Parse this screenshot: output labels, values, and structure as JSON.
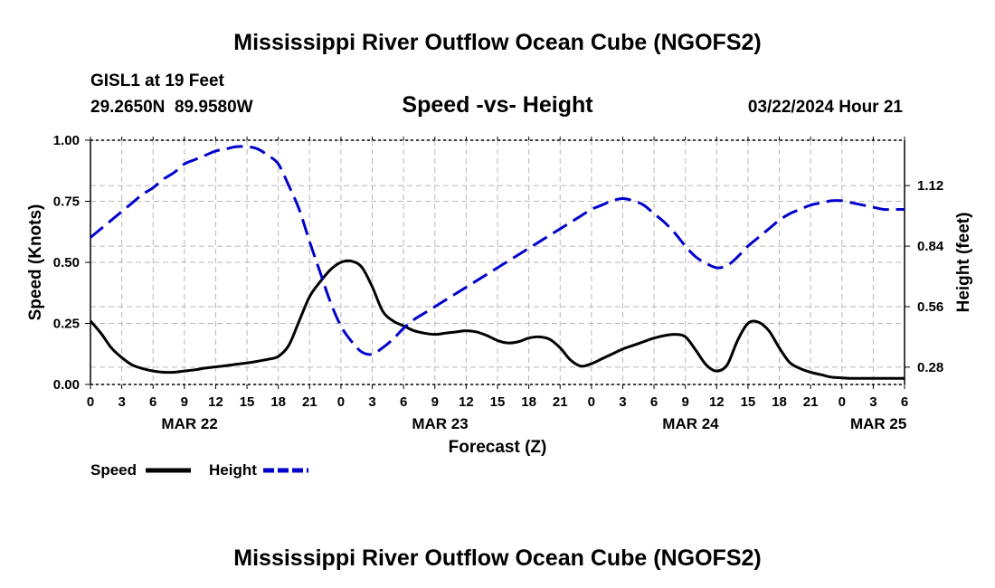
{
  "title": "Mississippi River Outflow Ocean Cube (NGOFS2)",
  "footer_title": "Mississippi River Outflow Ocean Cube (NGOFS2)",
  "station": {
    "name": "GISL1 at 19 Feet",
    "coords": "29.2650N  89.9580W"
  },
  "chart_subtitle": "Speed -vs- Height",
  "forecast_time": "03/22/2024 Hour 21",
  "chart_data": {
    "type": "line",
    "title": "Speed -vs- Height",
    "xlabel": "Forecast (Z)",
    "ylabel": "Speed (Knots)",
    "y2label": "Height (feet)",
    "xlim": [
      0,
      78
    ],
    "ylim": [
      0,
      1.0
    ],
    "y2lim": [
      0.2,
      1.33
    ],
    "grid": true,
    "x_tick_step_hours": 3,
    "x_tick_labels": [
      "0",
      "3",
      "6",
      "9",
      "12",
      "15",
      "18",
      "21",
      "0",
      "3",
      "6",
      "9",
      "12",
      "15",
      "18",
      "21",
      "0",
      "3",
      "6",
      "9",
      "12",
      "15",
      "18",
      "21",
      "0",
      "3",
      "6"
    ],
    "y_ticks": [
      0.0,
      0.25,
      0.5,
      0.75,
      1.0
    ],
    "y_tick_labels": [
      "0.00",
      "0.25",
      "0.50",
      "0.75",
      "1.00"
    ],
    "y2_ticks": [
      0.28,
      0.56,
      0.84,
      1.12
    ],
    "y2_tick_labels": [
      "0.28",
      "0.56",
      "0.84",
      "1.12"
    ],
    "date_labels": [
      {
        "label": "MAR 22",
        "hour": 9.5
      },
      {
        "label": "MAR 23",
        "hour": 33.5
      },
      {
        "label": "MAR 24",
        "hour": 57.5
      },
      {
        "label": "MAR 25",
        "hour": 75.5
      }
    ],
    "series": [
      {
        "name": "Speed",
        "axis": "left",
        "color": "#000000",
        "style": "solid",
        "x": [
          0,
          1,
          2,
          3,
          4,
          5,
          6,
          7,
          8,
          9,
          10,
          11,
          12,
          13,
          14,
          15,
          16,
          17,
          18,
          19,
          20,
          21,
          22,
          23,
          24,
          25,
          26,
          27,
          28,
          29,
          30,
          31,
          32,
          33,
          34,
          35,
          36,
          37,
          38,
          39,
          40,
          41,
          42,
          43,
          44,
          45,
          46,
          47,
          48,
          49,
          50,
          51,
          52,
          53,
          54,
          55,
          56,
          57,
          58,
          59,
          60,
          61,
          62,
          63,
          64,
          65,
          66,
          67,
          68,
          69,
          70,
          71,
          72,
          73,
          74,
          75,
          76,
          77,
          78
        ],
        "values": [
          0.26,
          0.21,
          0.15,
          0.11,
          0.08,
          0.065,
          0.055,
          0.05,
          0.05,
          0.055,
          0.06,
          0.067,
          0.072,
          0.077,
          0.083,
          0.088,
          0.095,
          0.103,
          0.115,
          0.16,
          0.26,
          0.36,
          0.42,
          0.47,
          0.5,
          0.505,
          0.48,
          0.4,
          0.3,
          0.26,
          0.24,
          0.22,
          0.21,
          0.205,
          0.21,
          0.215,
          0.22,
          0.215,
          0.2,
          0.18,
          0.17,
          0.175,
          0.19,
          0.195,
          0.185,
          0.15,
          0.1,
          0.075,
          0.085,
          0.105,
          0.125,
          0.145,
          0.16,
          0.175,
          0.19,
          0.2,
          0.205,
          0.195,
          0.14,
          0.08,
          0.055,
          0.08,
          0.18,
          0.25,
          0.255,
          0.22,
          0.15,
          0.09,
          0.065,
          0.05,
          0.04,
          0.03,
          0.027,
          0.025,
          0.025,
          0.025,
          0.025,
          0.025,
          0.025
        ]
      },
      {
        "name": "Height",
        "axis": "right",
        "color": "#0000cc",
        "style": "dashed",
        "x": [
          0,
          1,
          2,
          3,
          4,
          5,
          6,
          7,
          8,
          9,
          10,
          11,
          12,
          13,
          14,
          15,
          16,
          17,
          18,
          19,
          20,
          21,
          22,
          23,
          24,
          25,
          26,
          27,
          28,
          29,
          30,
          31,
          32,
          33,
          34,
          35,
          36,
          37,
          38,
          39,
          40,
          41,
          42,
          43,
          44,
          45,
          46,
          47,
          48,
          49,
          50,
          51,
          52,
          53,
          54,
          55,
          56,
          57,
          58,
          59,
          60,
          61,
          62,
          63,
          64,
          65,
          66,
          67,
          68,
          69,
          70,
          71,
          72,
          73,
          74,
          75,
          76,
          77,
          78
        ],
        "values": [
          0.88,
          0.92,
          0.96,
          1.0,
          1.04,
          1.08,
          1.11,
          1.15,
          1.18,
          1.22,
          1.24,
          1.26,
          1.28,
          1.29,
          1.3,
          1.3,
          1.29,
          1.26,
          1.22,
          1.12,
          1.01,
          0.86,
          0.72,
          0.58,
          0.47,
          0.4,
          0.35,
          0.34,
          0.37,
          0.41,
          0.46,
          0.5,
          0.53,
          0.56,
          0.59,
          0.62,
          0.65,
          0.68,
          0.71,
          0.74,
          0.77,
          0.8,
          0.83,
          0.86,
          0.89,
          0.92,
          0.95,
          0.98,
          1.01,
          1.03,
          1.05,
          1.06,
          1.05,
          1.03,
          0.99,
          0.95,
          0.9,
          0.84,
          0.79,
          0.76,
          0.74,
          0.75,
          0.79,
          0.84,
          0.88,
          0.92,
          0.96,
          0.99,
          1.01,
          1.03,
          1.04,
          1.05,
          1.05,
          1.04,
          1.03,
          1.02,
          1.01,
          1.01,
          1.01
        ]
      }
    ],
    "legend_placement": "bottom-left"
  }
}
